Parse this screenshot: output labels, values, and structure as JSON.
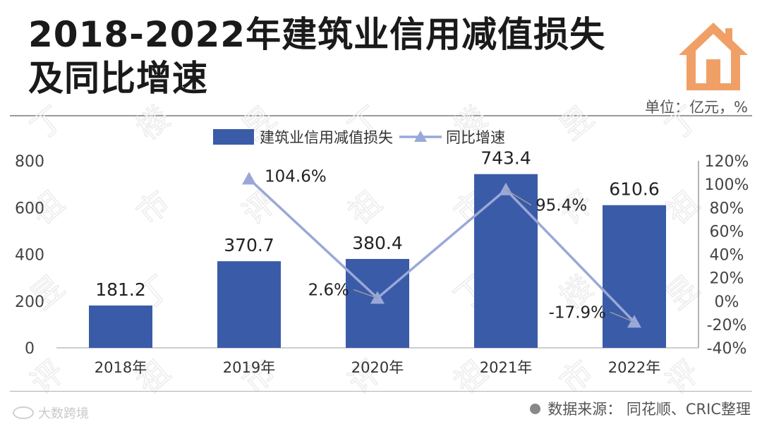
{
  "header": {
    "title": "2018-2022年建筑业信用减值损失\n及同比增速",
    "unit": "单位：亿元，%"
  },
  "footer": {
    "source": "数据来源：  同花顺、CRIC整理",
    "brand": "大数跨境"
  },
  "colors": {
    "bar": "#3a5ba8",
    "line": "#9aa8d8",
    "logo": "#f0a066"
  },
  "icons": {
    "logo": "house-icon",
    "source_bullet": "dot-icon",
    "brand": "weibo-eye-icon"
  },
  "chart_data": {
    "type": "bar",
    "categories": [
      "2018年",
      "2019年",
      "2020年",
      "2021年",
      "2022年"
    ],
    "series": [
      {
        "name": "建筑业信用减值损失",
        "type": "bar",
        "axis": "left",
        "values": [
          181.2,
          370.7,
          380.4,
          743.4,
          610.6
        ],
        "labels": [
          "181.2",
          "370.7",
          "380.4",
          "743.4",
          "610.6"
        ]
      },
      {
        "name": "同比增速",
        "type": "line",
        "axis": "right",
        "values": [
          null,
          104.6,
          2.6,
          95.4,
          -17.9
        ],
        "labels": [
          "",
          "104.6%",
          "2.6%",
          "95.4%",
          "-17.9%"
        ]
      }
    ],
    "y_left": {
      "min": 0,
      "max": 800,
      "ticks": [
        "0",
        "200",
        "400",
        "600",
        "800"
      ]
    },
    "y_right": {
      "min": -40,
      "max": 120,
      "ticks": [
        "-40%",
        "-20%",
        "0%",
        "20%",
        "40%",
        "60%",
        "80%",
        "100%",
        "120%"
      ]
    },
    "legend_position": "top-center",
    "grid": false
  }
}
